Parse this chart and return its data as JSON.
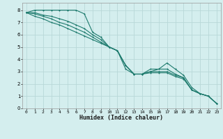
{
  "xlabel": "Humidex (Indice chaleur)",
  "bg_color": "#d4eeee",
  "grid_color": "#b8d8d8",
  "line_color": "#1e7b6e",
  "xlim": [
    -0.5,
    23.5
  ],
  "ylim": [
    0,
    8.6
  ],
  "xticks": [
    0,
    1,
    2,
    3,
    4,
    5,
    6,
    7,
    8,
    9,
    10,
    11,
    12,
    13,
    14,
    15,
    16,
    17,
    18,
    19,
    20,
    21,
    22,
    23
  ],
  "yticks": [
    0,
    1,
    2,
    3,
    4,
    5,
    6,
    7,
    8
  ],
  "lines": [
    {
      "x": [
        0,
        1,
        2,
        3,
        4,
        5,
        6,
        7,
        8,
        9,
        10,
        11,
        12,
        13,
        14,
        15,
        16,
        17,
        18,
        19,
        20,
        21,
        22,
        23
      ],
      "y": [
        7.8,
        8.0,
        8.0,
        8.0,
        8.0,
        8.0,
        8.0,
        7.7,
        6.2,
        5.8,
        5.0,
        4.7,
        3.2,
        2.8,
        2.8,
        3.2,
        3.2,
        3.7,
        3.2,
        2.7,
        1.7,
        1.2,
        1.0,
        0.4
      ]
    },
    {
      "x": [
        0,
        1,
        2,
        3,
        4,
        5,
        6,
        7,
        8,
        9,
        10,
        11,
        12,
        13,
        14,
        15,
        16,
        17,
        18,
        19,
        20,
        21,
        22,
        23
      ],
      "y": [
        7.8,
        7.8,
        7.6,
        7.5,
        7.3,
        7.1,
        6.8,
        6.5,
        6.0,
        5.6,
        5.0,
        4.7,
        3.5,
        2.8,
        2.8,
        3.0,
        3.2,
        3.2,
        2.8,
        2.5,
        1.5,
        1.2,
        1.0,
        0.4
      ]
    },
    {
      "x": [
        0,
        1,
        2,
        3,
        4,
        5,
        6,
        7,
        8,
        9,
        10,
        11,
        12,
        13,
        14,
        15,
        16,
        17,
        18,
        19,
        20,
        21,
        22,
        23
      ],
      "y": [
        7.8,
        7.7,
        7.5,
        7.3,
        7.0,
        6.8,
        6.5,
        6.2,
        5.8,
        5.4,
        5.0,
        4.7,
        3.5,
        2.8,
        2.8,
        3.0,
        3.0,
        3.0,
        2.7,
        2.5,
        1.5,
        1.2,
        1.0,
        0.4
      ]
    },
    {
      "x": [
        0,
        1,
        2,
        3,
        4,
        5,
        6,
        7,
        8,
        9,
        10,
        11,
        12,
        13,
        14,
        15,
        16,
        17,
        18,
        19,
        20,
        21,
        22,
        23
      ],
      "y": [
        7.8,
        7.5,
        7.3,
        7.0,
        6.8,
        6.5,
        6.2,
        5.9,
        5.6,
        5.3,
        5.0,
        4.7,
        3.5,
        2.8,
        2.8,
        2.9,
        2.9,
        2.9,
        2.6,
        2.4,
        1.5,
        1.2,
        1.0,
        0.4
      ]
    }
  ]
}
